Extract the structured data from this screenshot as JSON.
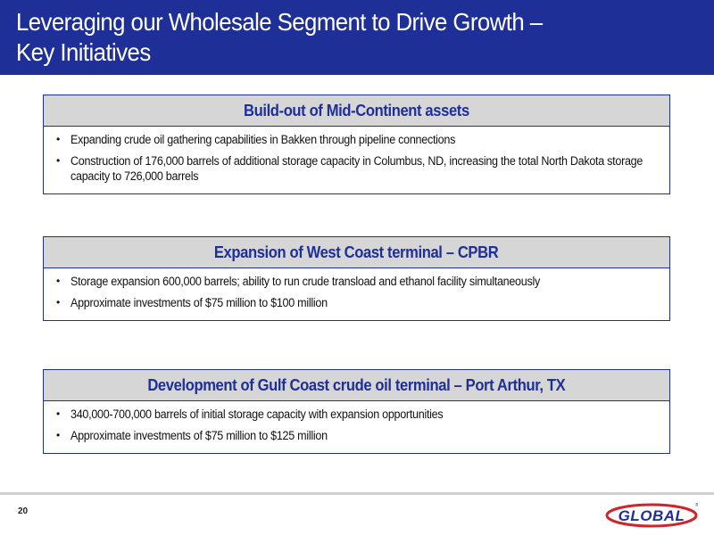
{
  "slide": {
    "title_line1": "Leveraging our Wholesale Segment to Drive Growth –",
    "title_line2": "Key Initiatives",
    "page_number": "20",
    "logo_text": "GLOBAL"
  },
  "sections": [
    {
      "heading": "Build-out of Mid-Continent assets",
      "bullets": [
        "Expanding crude oil gathering capabilities in Bakken through pipeline connections",
        "Construction of 176,000 barrels of additional storage capacity in Columbus, ND, increasing the total North Dakota storage capacity to 726,000 barrels"
      ]
    },
    {
      "heading": "Expansion of West Coast terminal – CPBR",
      "bullets": [
        "Storage expansion 600,000 barrels; ability to run crude transload and ethanol facility simultaneously",
        "Approximate investments of $75 million to $100 million"
      ]
    },
    {
      "heading": "Development of Gulf Coast crude oil terminal – Port Arthur, TX",
      "bullets": [
        "340,000-700,000 barrels of initial storage capacity with expansion opportunities",
        "Approximate investments of $75 million to $125 million"
      ]
    }
  ],
  "colors": {
    "header_bg": "#1e2f97",
    "box_heading_bg": "#d6d6d6",
    "logo_blue": "#1e2f97",
    "logo_red": "#d2232a"
  }
}
